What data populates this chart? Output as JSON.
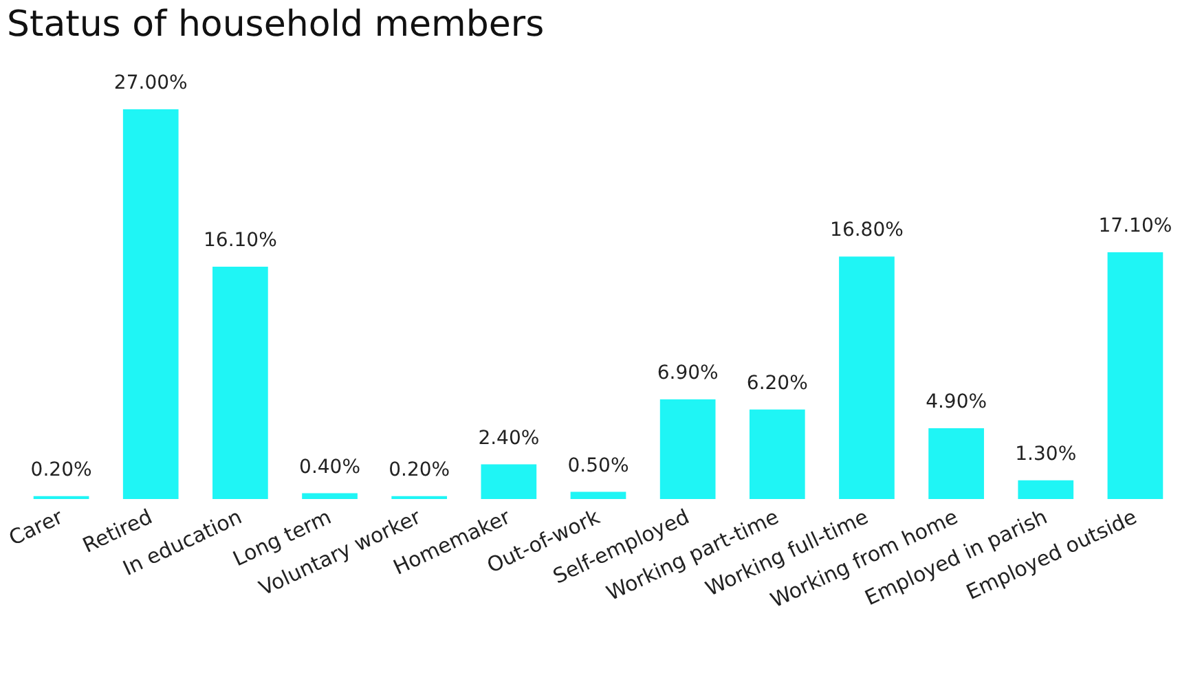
{
  "chart_data": {
    "type": "bar",
    "title": "Status of household members",
    "categories": [
      "Carer",
      "Retired",
      "In education",
      "Long term",
      "Voluntary worker",
      "Homemaker",
      "Out-of-work",
      "Self-employed",
      "Working part-time",
      "Working full-time",
      "Working from home",
      "Employed in parish",
      "Employed outside"
    ],
    "values": [
      0.2,
      27.0,
      16.1,
      0.4,
      0.2,
      2.4,
      0.5,
      6.9,
      6.2,
      16.8,
      4.9,
      1.3,
      17.1
    ],
    "value_labels": [
      "0.20%",
      "27.00%",
      "16.10%",
      "0.40%",
      "0.20%",
      "2.40%",
      "0.50%",
      "6.90%",
      "6.20%",
      "16.80%",
      "4.90%",
      "1.30%",
      "17.10%"
    ],
    "color": "#1ff5f5"
  }
}
